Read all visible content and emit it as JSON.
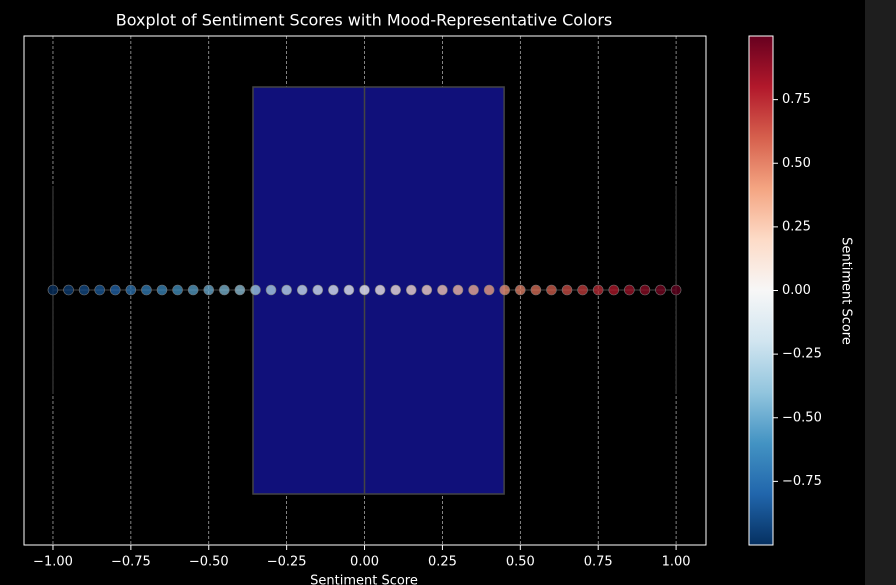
{
  "chart_data": {
    "type": "box",
    "title": "Boxplot of Sentiment Scores with Mood-Representative Colors",
    "x_label": "Sentiment Score",
    "colorbar_label": "Sentiment Score",
    "xlim": [
      -1.093,
      1.096
    ],
    "xticks": [
      {
        "value": -1,
        "label": "−1.00"
      },
      {
        "value": -0.75,
        "label": "−0.75"
      },
      {
        "value": -0.5,
        "label": "−0.50"
      },
      {
        "value": -0.25,
        "label": "−0.25"
      },
      {
        "value": 0,
        "label": "0.00"
      },
      {
        "value": 0.25,
        "label": "0.25"
      },
      {
        "value": 0.5,
        "label": "0.50"
      },
      {
        "value": 0.75,
        "label": "0.75"
      },
      {
        "value": 1,
        "label": "1.00"
      }
    ],
    "grid": true,
    "box": {
      "whisker_low": -1.0,
      "q1": -0.358,
      "median": 0.0,
      "q3": 0.448,
      "whisker_high": 1.0,
      "color": "#10107a"
    },
    "points": [
      -1,
      -0.95,
      -0.9,
      -0.85,
      -0.8,
      -0.75,
      -0.7,
      -0.65,
      -0.6,
      -0.55,
      -0.5,
      -0.45,
      -0.4,
      -0.35,
      -0.3,
      -0.25,
      -0.2,
      -0.15,
      -0.1,
      -0.05,
      0,
      0.05,
      0.1,
      0.15,
      0.2,
      0.25,
      0.3,
      0.35,
      0.4,
      0.45,
      0.5,
      0.55,
      0.6,
      0.65,
      0.7,
      0.75,
      0.8,
      0.85,
      0.9,
      0.95,
      1
    ],
    "colormap": "RdBu_r",
    "colormap_colors": [
      "#053061",
      "#2166ac",
      "#4393c3",
      "#92c5de",
      "#d1e5f0",
      "#f7f7f7",
      "#fddbc7",
      "#f4a582",
      "#d6604d",
      "#b2182b",
      "#67001f"
    ],
    "clim": [
      -1,
      1
    ],
    "cticks": [
      {
        "value": -0.75,
        "label": "−0.75"
      },
      {
        "value": -0.5,
        "label": "−0.50"
      },
      {
        "value": -0.25,
        "label": "−0.25"
      },
      {
        "value": 0,
        "label": "0.00"
      },
      {
        "value": 0.25,
        "label": "0.25"
      },
      {
        "value": 0.5,
        "label": "0.50"
      },
      {
        "value": 0.75,
        "label": "0.75"
      }
    ]
  }
}
